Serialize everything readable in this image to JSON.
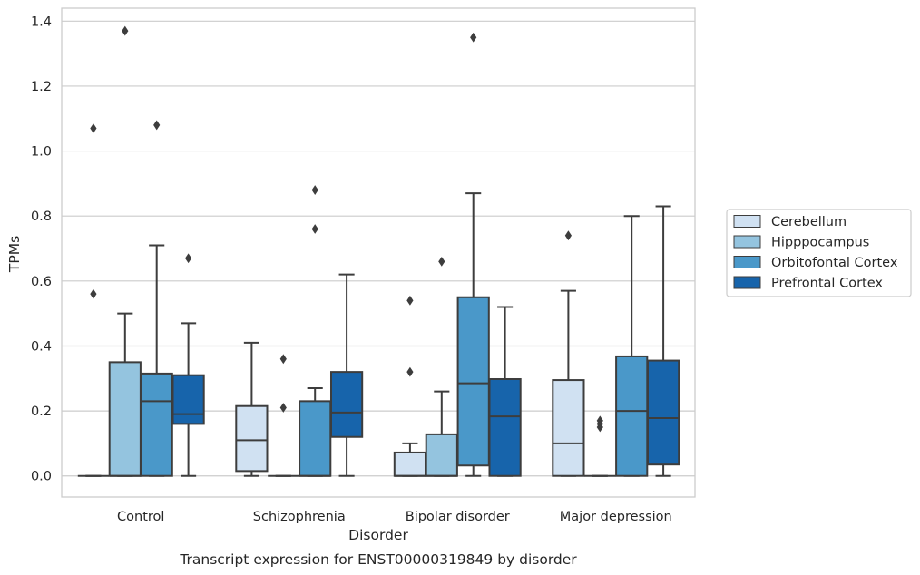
{
  "chart_data": {
    "type": "box",
    "caption": "Transcript expression for ENST00000319849 by disorder",
    "xlabel": "Disorder",
    "ylabel": "TPMs",
    "ylim": [
      -0.065,
      1.44
    ],
    "yticks": [
      0.0,
      0.2,
      0.4,
      0.6,
      0.8,
      1.0,
      1.2,
      1.4
    ],
    "ytick_labels": [
      "0.0",
      "0.2",
      "0.4",
      "0.6",
      "0.8",
      "1.0",
      "1.2",
      "1.4"
    ],
    "grid": "horizontal",
    "legend_position": "right",
    "categories": [
      "Control",
      "Schizophrenia",
      "Bipolar disorder",
      "Major depression"
    ],
    "series": [
      {
        "name": "Cerebellum",
        "color": "#d0e1f2",
        "boxes": [
          {
            "q1": 0.0,
            "median": 0.0,
            "q3": 0.0,
            "whisker_low": 0.0,
            "whisker_high": 0.0,
            "outliers": [
              0.56,
              1.07
            ]
          },
          {
            "q1": 0.015,
            "median": 0.11,
            "q3": 0.215,
            "whisker_low": 0.0,
            "whisker_high": 0.41,
            "outliers": []
          },
          {
            "q1": 0.0,
            "median": 0.0,
            "q3": 0.072,
            "whisker_low": 0.0,
            "whisker_high": 0.1,
            "outliers": [
              0.32,
              0.54
            ]
          },
          {
            "q1": 0.0,
            "median": 0.1,
            "q3": 0.295,
            "whisker_low": 0.0,
            "whisker_high": 0.57,
            "outliers": [
              0.74
            ]
          }
        ]
      },
      {
        "name": "Hipppocampus",
        "color": "#94c4df",
        "boxes": [
          {
            "q1": 0.0,
            "median": 0.0,
            "q3": 0.35,
            "whisker_low": 0.0,
            "whisker_high": 0.5,
            "outliers": [
              1.37
            ]
          },
          {
            "q1": 0.0,
            "median": 0.0,
            "q3": 0.0,
            "whisker_low": 0.0,
            "whisker_high": 0.0,
            "outliers": [
              0.21,
              0.36
            ]
          },
          {
            "q1": 0.0,
            "median": 0.0,
            "q3": 0.128,
            "whisker_low": 0.0,
            "whisker_high": 0.26,
            "outliers": [
              0.66
            ]
          },
          {
            "q1": 0.0,
            "median": 0.0,
            "q3": 0.0,
            "whisker_low": 0.0,
            "whisker_high": 0.0,
            "outliers": [
              0.15,
              0.16,
              0.17
            ]
          }
        ]
      },
      {
        "name": "Orbitofontal Cortex",
        "color": "#4a98c9",
        "boxes": [
          {
            "q1": 0.0,
            "median": 0.23,
            "q3": 0.315,
            "whisker_low": 0.0,
            "whisker_high": 0.71,
            "outliers": [
              1.08
            ]
          },
          {
            "q1": 0.0,
            "median": 0.0,
            "q3": 0.23,
            "whisker_low": 0.0,
            "whisker_high": 0.27,
            "outliers": [
              0.76,
              0.88
            ]
          },
          {
            "q1": 0.032,
            "median": 0.285,
            "q3": 0.55,
            "whisker_low": 0.0,
            "whisker_high": 0.87,
            "outliers": [
              1.35
            ]
          },
          {
            "q1": 0.0,
            "median": 0.2,
            "q3": 0.368,
            "whisker_low": 0.0,
            "whisker_high": 0.8,
            "outliers": []
          }
        ]
      },
      {
        "name": "Prefrontal Cortex",
        "color": "#1764ab",
        "boxes": [
          {
            "q1": 0.16,
            "median": 0.19,
            "q3": 0.31,
            "whisker_low": 0.0,
            "whisker_high": 0.47,
            "outliers": [
              0.67
            ]
          },
          {
            "q1": 0.12,
            "median": 0.195,
            "q3": 0.32,
            "whisker_low": 0.0,
            "whisker_high": 0.62,
            "outliers": []
          },
          {
            "q1": 0.0,
            "median": 0.183,
            "q3": 0.298,
            "whisker_low": 0.0,
            "whisker_high": 0.52,
            "outliers": []
          },
          {
            "q1": 0.035,
            "median": 0.178,
            "q3": 0.355,
            "whisker_low": 0.0,
            "whisker_high": 0.83,
            "outliers": []
          }
        ]
      }
    ],
    "line_color": "#3d3d3d",
    "grid_color": "#cccccc",
    "frame_color": "#cccccc"
  }
}
